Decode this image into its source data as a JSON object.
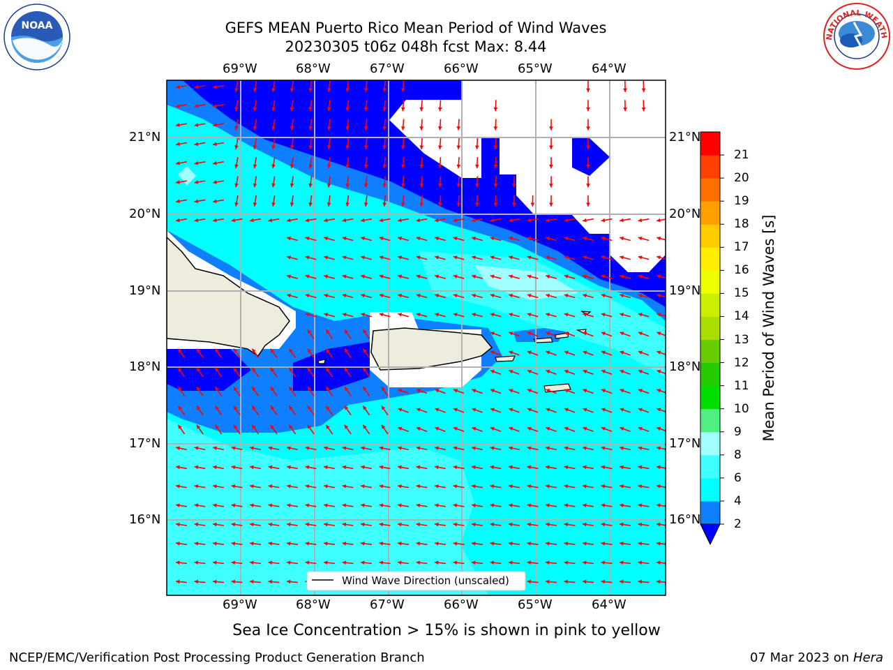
{
  "header": {
    "title_line1": "GEFS MEAN Puerto Rico Mean Period of Wind Waves",
    "title_line2": "20230305 t06z 048h fcst   Max: 8.44"
  },
  "logos": {
    "left": "NOAA",
    "left_ring": "NATIONAL OCEANIC AND ATMOSPHERIC ADMINISTRATION · U.S. DEPARTMENT OF COMMERCE",
    "right": "NATIONAL WEATHER SERVICE"
  },
  "map": {
    "lon_ticks": [
      "69°W",
      "68°W",
      "67°W",
      "66°W",
      "65°W",
      "64°W"
    ],
    "lat_ticks": [
      "21°N",
      "20°N",
      "19°N",
      "18°N",
      "17°N",
      "16°N"
    ],
    "legend_label": "Wind Wave Direction (unscaled)",
    "colors": {
      "land": "#eeecdc",
      "bin_0_2": "#0000ff",
      "bin_2_4": "#0e7fff",
      "bin_4_6": "#00ffff",
      "bin_6_8": "#40ffff",
      "bin_8_9": "#a0ffff",
      "arrow": "#ff0000"
    }
  },
  "colorbar": {
    "label": "Mean Period of Wind Waves [s]",
    "ticks": [
      "2",
      "4",
      "6",
      "8",
      "9",
      "10",
      "11",
      "12",
      "13",
      "14",
      "15",
      "16",
      "17",
      "18",
      "19",
      "20",
      "21"
    ],
    "colors": [
      "#0e7fff",
      "#00ffff",
      "#40ffff",
      "#a0ffff",
      "#50f080",
      "#00dd00",
      "#22cc00",
      "#66cc00",
      "#aadd00",
      "#ccee00",
      "#eeff00",
      "#ffee00",
      "#ffcc00",
      "#ffa000",
      "#ff7000",
      "#ff4000",
      "#ff0000"
    ],
    "under_color": "#0000ff"
  },
  "caption": "Sea Ice Concentration > 15% is shown in pink to yellow",
  "footer": {
    "left": "NCEP/EMC/Verification Post Processing Product Generation Branch",
    "date": "07 Mar 2023 on",
    "host": "Hera"
  }
}
